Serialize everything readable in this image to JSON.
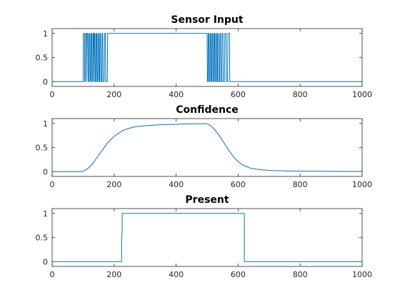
{
  "chart_data": [
    {
      "type": "line",
      "title": "Sensor Input",
      "xlim": [
        0,
        1000
      ],
      "ylim": [
        -0.1,
        1.1
      ],
      "xticks": [
        0,
        200,
        400,
        600,
        800,
        1000
      ],
      "yticks": [
        0,
        0.5,
        1
      ],
      "xtick_labels": [
        "0",
        "200",
        "400",
        "600",
        "800",
        "1000"
      ],
      "ytick_labels": [
        "0",
        "0.5",
        "1"
      ],
      "grid": false,
      "color": "#0072bd",
      "series": [
        {
          "x": [
            0,
            100,
            101,
            104,
            105,
            107,
            108,
            111,
            112,
            113,
            116,
            117,
            119,
            120,
            122,
            123,
            125,
            126,
            128,
            129,
            131,
            132,
            134,
            135,
            136,
            138,
            139,
            141,
            142,
            144,
            145,
            147,
            148,
            150,
            151,
            153,
            154,
            156,
            157,
            160,
            161,
            163,
            164,
            168,
            169,
            172,
            173,
            178,
            179,
            182,
            183,
            500,
            501,
            503,
            504,
            506,
            507,
            509,
            510,
            512,
            513,
            515,
            516,
            518,
            519,
            521,
            522,
            524,
            525,
            527,
            528,
            530,
            531,
            533,
            534,
            536,
            537,
            540,
            541,
            543,
            544,
            547,
            548,
            551,
            552,
            556,
            557,
            561,
            562,
            566,
            567,
            572,
            573,
            578,
            579,
            1000
          ],
          "y": [
            0,
            0,
            1,
            1,
            0,
            0,
            1,
            1,
            0,
            1,
            1,
            0,
            0,
            1,
            1,
            0,
            0,
            1,
            1,
            0,
            0,
            1,
            1,
            0,
            1,
            1,
            0,
            0,
            1,
            1,
            0,
            0,
            1,
            1,
            0,
            0,
            1,
            1,
            0,
            0,
            1,
            1,
            0,
            0,
            1,
            1,
            0,
            0,
            1,
            1,
            1,
            1,
            0,
            0,
            1,
            1,
            0,
            0,
            1,
            1,
            0,
            0,
            1,
            1,
            0,
            0,
            1,
            1,
            0,
            0,
            1,
            1,
            0,
            0,
            1,
            1,
            0,
            0,
            1,
            1,
            0,
            0,
            1,
            1,
            0,
            0,
            1,
            1,
            0,
            0,
            1,
            1,
            0,
            0,
            0,
            0
          ]
        }
      ]
    },
    {
      "type": "line",
      "title": "Confidence",
      "xlim": [
        0,
        1000
      ],
      "ylim": [
        -0.1,
        1.1
      ],
      "xticks": [
        0,
        200,
        400,
        600,
        800,
        1000
      ],
      "yticks": [
        0,
        0.5,
        1
      ],
      "xtick_labels": [
        "0",
        "200",
        "400",
        "600",
        "800",
        "1000"
      ],
      "ytick_labels": [
        "0",
        "0.5",
        "1"
      ],
      "grid": false,
      "color": "#0072bd",
      "series": [
        {
          "x": [
            0,
            90,
            100,
            110,
            120,
            130,
            140,
            150,
            160,
            170,
            180,
            190,
            200,
            210,
            220,
            230,
            240,
            250,
            260,
            270,
            280,
            300,
            320,
            340,
            360,
            380,
            400,
            420,
            440,
            460,
            480,
            490,
            500,
            510,
            520,
            530,
            540,
            550,
            560,
            570,
            580,
            590,
            600,
            610,
            620,
            640,
            660,
            680,
            700,
            720,
            750,
            800,
            850,
            900,
            950,
            1000
          ],
          "y": [
            0,
            0,
            0.01,
            0.04,
            0.09,
            0.16,
            0.25,
            0.34,
            0.43,
            0.52,
            0.6,
            0.67,
            0.73,
            0.78,
            0.82,
            0.86,
            0.88,
            0.9,
            0.92,
            0.93,
            0.94,
            0.95,
            0.96,
            0.97,
            0.975,
            0.98,
            0.98,
            0.985,
            0.99,
            0.99,
            0.99,
            0.995,
            0.99,
            0.96,
            0.9,
            0.83,
            0.74,
            0.64,
            0.54,
            0.44,
            0.35,
            0.27,
            0.21,
            0.16,
            0.12,
            0.07,
            0.05,
            0.035,
            0.025,
            0.02,
            0.015,
            0.01,
            0.008,
            0.006,
            0.004,
            0.003
          ]
        }
      ]
    },
    {
      "type": "line",
      "title": "Present",
      "xlim": [
        0,
        1000
      ],
      "ylim": [
        -0.1,
        1.1
      ],
      "xticks": [
        0,
        200,
        400,
        600,
        800,
        1000
      ],
      "yticks": [
        0,
        0.5,
        1
      ],
      "xtick_labels": [
        "0",
        "200",
        "400",
        "600",
        "800",
        "1000"
      ],
      "ytick_labels": [
        "0",
        "0.5",
        "1"
      ],
      "grid": false,
      "color": "#0072bd",
      "series": [
        {
          "x": [
            0,
            224,
            224,
            225,
            225,
            226,
            226,
            620,
            620,
            1000
          ],
          "y": [
            0,
            0,
            0.5,
            0.5,
            0.6,
            0.6,
            1,
            1,
            0,
            0
          ]
        }
      ]
    }
  ]
}
